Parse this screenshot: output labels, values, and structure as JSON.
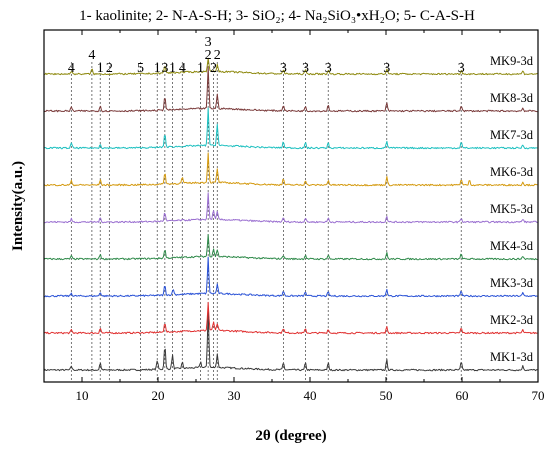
{
  "chart_data": {
    "type": "line",
    "title": "1- kaolinite; 2- N-A-S-H; 3- SiO₂; 4- Na₂SiO₃•xH₂O; 5- C-A-S-H",
    "xlabel": "2θ (degree)",
    "ylabel": "Intensity(a.u.)",
    "xlim": [
      5,
      70
    ],
    "x_ticks": [
      "10",
      "20",
      "30",
      "40",
      "50",
      "60",
      "70"
    ],
    "y_ticks_shown": false,
    "grid": false,
    "reference_lines_x": [
      8.6,
      11.3,
      12.4,
      13.6,
      17.7,
      19.9,
      20.9,
      21.9,
      23.2,
      25.6,
      26.6,
      27.3,
      27.8,
      36.5,
      39.4,
      42.4,
      50.1,
      59.9
    ],
    "peak_labels": [
      {
        "x": 8.6,
        "label": "4",
        "row": 0
      },
      {
        "x": 11.3,
        "label": "4",
        "row": -1
      },
      {
        "x": 12.4,
        "label": "1",
        "row": 0
      },
      {
        "x": 13.6,
        "label": "2",
        "row": 0
      },
      {
        "x": 17.7,
        "label": "5",
        "row": 0
      },
      {
        "x": 19.9,
        "label": "1",
        "row": 0
      },
      {
        "x": 20.9,
        "label": "3",
        "row": 0
      },
      {
        "x": 21.9,
        "label": "1",
        "row": 0
      },
      {
        "x": 23.2,
        "label": "4",
        "row": 0
      },
      {
        "x": 25.6,
        "label": "1",
        "row": 0
      },
      {
        "x": 26.6,
        "label": "3",
        "row": -2
      },
      {
        "x": 26.6,
        "label": "2",
        "row": -1
      },
      {
        "x": 27.8,
        "label": "2",
        "row": -1
      },
      {
        "x": 27.3,
        "label": "2",
        "row": 0
      },
      {
        "x": 36.5,
        "label": "3",
        "row": 0
      },
      {
        "x": 39.4,
        "label": "3",
        "row": 0
      },
      {
        "x": 42.4,
        "label": "3",
        "row": 0
      },
      {
        "x": 50.1,
        "label": "3",
        "row": 0
      },
      {
        "x": 59.9,
        "label": "3",
        "row": 0
      }
    ],
    "series": [
      {
        "name": "MK1-3d",
        "color": "#3a3a3a",
        "peaks": [
          [
            8.6,
            4
          ],
          [
            12.4,
            7
          ],
          [
            19.9,
            9
          ],
          [
            20.9,
            24
          ],
          [
            21.9,
            14
          ],
          [
            23.2,
            6
          ],
          [
            25.6,
            6
          ],
          [
            26.6,
            58
          ],
          [
            27.8,
            14
          ],
          [
            36.5,
            7
          ],
          [
            39.4,
            7
          ],
          [
            42.4,
            7
          ],
          [
            50.1,
            10
          ],
          [
            59.9,
            8
          ],
          [
            68.0,
            4
          ]
        ]
      },
      {
        "name": "MK2-3d",
        "color": "#e03030",
        "peaks": [
          [
            8.6,
            3
          ],
          [
            12.4,
            5
          ],
          [
            20.9,
            10
          ],
          [
            26.6,
            28
          ],
          [
            27.3,
            9
          ],
          [
            27.8,
            7
          ],
          [
            36.5,
            5
          ],
          [
            39.4,
            4
          ],
          [
            42.4,
            4
          ],
          [
            50.1,
            6
          ],
          [
            59.9,
            5
          ],
          [
            68.0,
            3
          ]
        ]
      },
      {
        "name": "MK3-3d",
        "color": "#2a52d6",
        "peaks": [
          [
            8.6,
            3
          ],
          [
            12.4,
            4
          ],
          [
            20.9,
            10
          ],
          [
            22.0,
            6
          ],
          [
            26.6,
            36
          ],
          [
            27.8,
            9
          ],
          [
            36.5,
            5
          ],
          [
            39.4,
            4
          ],
          [
            42.4,
            4
          ],
          [
            50.1,
            7
          ],
          [
            59.9,
            5
          ],
          [
            68.0,
            3
          ]
        ]
      },
      {
        "name": "MK4-3d",
        "color": "#2f8a4a",
        "peaks": [
          [
            8.6,
            3
          ],
          [
            12.4,
            5
          ],
          [
            20.9,
            9
          ],
          [
            26.6,
            22
          ],
          [
            27.3,
            8
          ],
          [
            27.8,
            7
          ],
          [
            36.5,
            4
          ],
          [
            39.4,
            4
          ],
          [
            42.4,
            4
          ],
          [
            50.1,
            6
          ],
          [
            59.9,
            5
          ],
          [
            68.0,
            3
          ]
        ]
      },
      {
        "name": "MK5-3d",
        "color": "#9a6fd0",
        "peaks": [
          [
            8.6,
            3
          ],
          [
            12.4,
            4
          ],
          [
            20.9,
            9
          ],
          [
            26.6,
            26
          ],
          [
            27.3,
            10
          ],
          [
            27.8,
            8
          ],
          [
            36.5,
            4
          ],
          [
            39.4,
            4
          ],
          [
            42.4,
            4
          ],
          [
            50.1,
            6
          ],
          [
            59.9,
            4
          ],
          [
            68.0,
            3
          ]
        ]
      },
      {
        "name": "MK6-3d",
        "color": "#d49a10",
        "peaks": [
          [
            8.6,
            4
          ],
          [
            12.4,
            5
          ],
          [
            20.9,
            12
          ],
          [
            23.2,
            6
          ],
          [
            26.6,
            30
          ],
          [
            27.8,
            14
          ],
          [
            36.5,
            6
          ],
          [
            39.4,
            5
          ],
          [
            42.4,
            5
          ],
          [
            50.1,
            8
          ],
          [
            59.9,
            6
          ],
          [
            61.0,
            5
          ],
          [
            68.0,
            3
          ]
        ]
      },
      {
        "name": "MK7-3d",
        "color": "#1ec0c0",
        "peaks": [
          [
            8.6,
            5
          ],
          [
            12.4,
            4
          ],
          [
            20.9,
            14
          ],
          [
            26.6,
            38
          ],
          [
            27.8,
            22
          ],
          [
            36.5,
            6
          ],
          [
            39.4,
            5
          ],
          [
            42.4,
            5
          ],
          [
            50.1,
            7
          ],
          [
            59.9,
            6
          ],
          [
            68.0,
            3
          ]
        ]
      },
      {
        "name": "MK8-3d",
        "color": "#7a3a3a",
        "peaks": [
          [
            8.6,
            4
          ],
          [
            12.4,
            5
          ],
          [
            20.9,
            14
          ],
          [
            26.6,
            42
          ],
          [
            27.8,
            14
          ],
          [
            36.5,
            6
          ],
          [
            39.4,
            5
          ],
          [
            42.4,
            6
          ],
          [
            50.1,
            8
          ],
          [
            59.9,
            6
          ],
          [
            68.0,
            3
          ]
        ]
      },
      {
        "name": "MK9-3d",
        "color": "#8f8a10",
        "peaks": [
          [
            8.6,
            3
          ],
          [
            11.3,
            5
          ],
          [
            20.9,
            8
          ],
          [
            26.6,
            14
          ],
          [
            27.8,
            7
          ],
          [
            36.5,
            4
          ],
          [
            39.4,
            4
          ],
          [
            42.4,
            4
          ],
          [
            50.1,
            5
          ],
          [
            59.9,
            4
          ],
          [
            68.0,
            3
          ]
        ]
      }
    ]
  }
}
